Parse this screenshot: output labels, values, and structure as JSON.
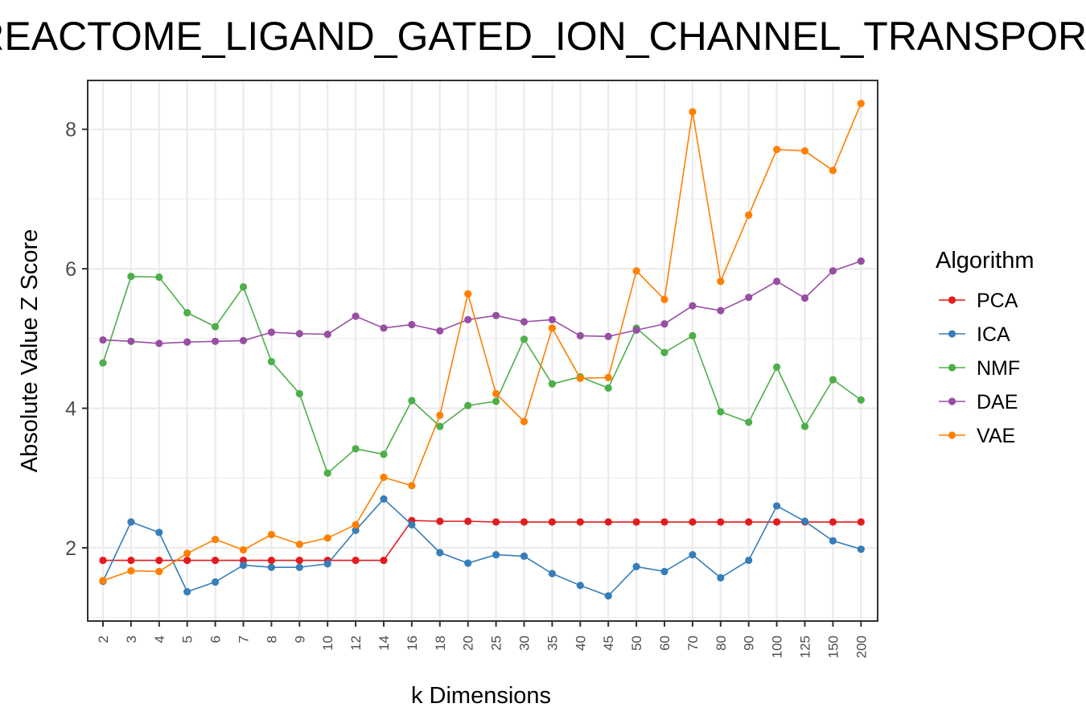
{
  "chart_data": {
    "type": "line",
    "title": "REACTOME_LIGAND_GATED_ION_CHANNEL_TRANSPORT",
    "xlabel": "k Dimensions",
    "ylabel": "Absolute Value Z Score",
    "categories": [
      "2",
      "3",
      "4",
      "5",
      "6",
      "7",
      "8",
      "9",
      "10",
      "12",
      "14",
      "16",
      "18",
      "20",
      "25",
      "30",
      "35",
      "40",
      "45",
      "50",
      "60",
      "70",
      "80",
      "90",
      "100",
      "125",
      "150",
      "200"
    ],
    "yticks": [
      2,
      4,
      6,
      8
    ],
    "ylim": [
      0.95,
      8.7
    ],
    "grid": true,
    "legend": {
      "title": "Algorithm",
      "placement": "right"
    },
    "series": [
      {
        "name": "PCA",
        "color": "#e41a1c",
        "values": [
          1.82,
          1.82,
          1.82,
          1.82,
          1.82,
          1.82,
          1.82,
          1.82,
          1.82,
          1.82,
          1.82,
          2.39,
          2.38,
          2.38,
          2.37,
          2.37,
          2.37,
          2.37,
          2.37,
          2.37,
          2.37,
          2.37,
          2.37,
          2.37,
          2.37,
          2.37,
          2.37,
          2.37
        ]
      },
      {
        "name": "ICA",
        "color": "#377eb8",
        "values": [
          1.52,
          2.37,
          2.22,
          1.37,
          1.51,
          1.75,
          1.72,
          1.72,
          1.77,
          2.25,
          2.7,
          2.33,
          1.93,
          1.78,
          1.9,
          1.88,
          1.63,
          1.46,
          1.31,
          1.73,
          1.66,
          1.9,
          1.57,
          1.82,
          2.6,
          2.38,
          2.1,
          1.98
        ]
      },
      {
        "name": "NMF",
        "color": "#4daf4a",
        "values": [
          4.65,
          5.89,
          5.88,
          5.37,
          5.17,
          5.74,
          4.67,
          4.21,
          3.07,
          3.42,
          3.34,
          4.11,
          3.74,
          4.04,
          4.1,
          4.99,
          4.35,
          4.45,
          4.29,
          5.15,
          4.8,
          5.04,
          3.95,
          3.8,
          4.59,
          3.74,
          4.41,
          4.12
        ]
      },
      {
        "name": "DAE",
        "color": "#984ea3",
        "values": [
          4.98,
          4.96,
          4.93,
          4.95,
          4.96,
          4.97,
          5.09,
          5.07,
          5.06,
          5.32,
          5.15,
          5.2,
          5.11,
          5.27,
          5.33,
          5.24,
          5.27,
          5.04,
          5.03,
          5.12,
          5.21,
          5.47,
          5.4,
          5.59,
          5.82,
          5.58,
          5.97,
          6.11
        ]
      },
      {
        "name": "VAE",
        "color": "#ff7f00",
        "values": [
          1.53,
          1.67,
          1.66,
          1.92,
          2.12,
          1.97,
          2.19,
          2.05,
          2.14,
          2.33,
          3.01,
          2.89,
          3.9,
          5.64,
          4.21,
          3.81,
          5.15,
          4.43,
          4.44,
          5.97,
          5.56,
          8.25,
          5.82,
          6.77,
          7.71,
          7.69,
          7.41,
          8.37
        ]
      }
    ]
  }
}
